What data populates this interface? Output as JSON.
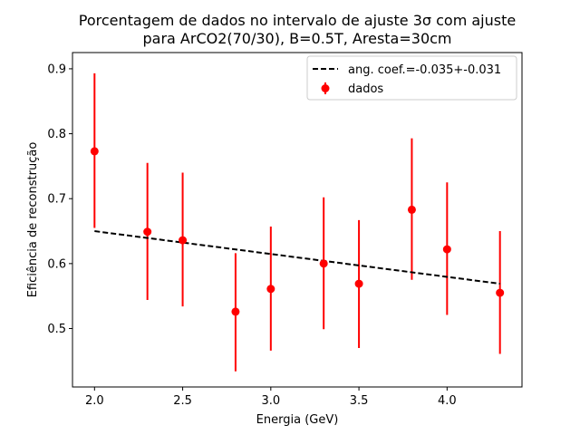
{
  "chart_data": {
    "type": "scatter",
    "title_lines": [
      "Porcentagem de dados no intervalo de ajuste 3σ com ajuste",
      "para ArCO2(70/30), B=0.5T, Aresta=30cm"
    ],
    "xlabel": "Energia (GeV)",
    "ylabel": "Eficiência de reconstrução",
    "xlim": [
      1.875,
      4.425
    ],
    "ylim": [
      0.41,
      0.925
    ],
    "xticks": [
      "2.0",
      "2.5",
      "3.0",
      "3.5",
      "4.0"
    ],
    "yticks": [
      "0.5",
      "0.6",
      "0.7",
      "0.8",
      "0.9"
    ],
    "grid": false,
    "legend_position": "upper-right",
    "series": [
      {
        "name": "dados",
        "kind": "errorbar",
        "color": "#ff0000",
        "x": [
          2.0,
          2.3,
          2.5,
          2.8,
          3.0,
          3.3,
          3.5,
          3.8,
          4.0,
          4.3
        ],
        "y": [
          0.773,
          0.649,
          0.636,
          0.526,
          0.561,
          0.6,
          0.569,
          0.683,
          0.622,
          0.555
        ],
        "yerr_low": [
          0.655,
          0.544,
          0.534,
          0.434,
          0.466,
          0.499,
          0.47,
          0.575,
          0.521,
          0.461
        ],
        "yerr_high": [
          0.893,
          0.755,
          0.74,
          0.616,
          0.657,
          0.702,
          0.667,
          0.793,
          0.725,
          0.65
        ]
      },
      {
        "name": "ang. coef.=-0.035+-0.031",
        "kind": "line",
        "style": "dashed",
        "color": "#000000",
        "x": [
          2.0,
          4.3
        ],
        "y": [
          0.65,
          0.569
        ]
      }
    ]
  }
}
